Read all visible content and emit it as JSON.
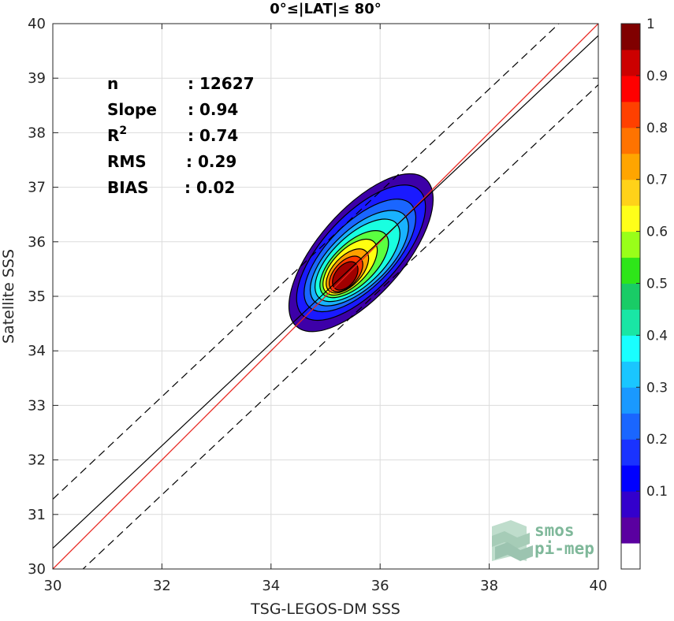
{
  "chart_data": {
    "type": "scatter",
    "title": "0°≤|LAT|≤ 80°",
    "xlabel": "TSG-LEGOS-DM SSS",
    "ylabel": "Satellite SSS",
    "xlim": [
      30,
      40
    ],
    "ylim": [
      30,
      40
    ],
    "xticks": [
      "30",
      "32",
      "34",
      "36",
      "38",
      "40"
    ],
    "yticks": [
      "30",
      "31",
      "32",
      "33",
      "34",
      "35",
      "36",
      "37",
      "38",
      "39",
      "40"
    ],
    "grid": true,
    "stats": [
      {
        "label": "n",
        "value": ": 12627"
      },
      {
        "label": "Slope",
        "value": ": 0.94"
      },
      {
        "label": "R",
        "sup": "2",
        "value": ": 0.74"
      },
      {
        "label": "RMS",
        "value": ": 0.29"
      },
      {
        "label": "BIAS",
        "value": ": 0.02"
      }
    ],
    "lines": {
      "identity": {
        "color": "#e8261f",
        "slope": 1,
        "intercept": 0
      },
      "fit": {
        "color": "#000000",
        "slope": 0.94,
        "intercept": 2.18
      },
      "bounds": {
        "color": "#000000",
        "style": "dashed",
        "slope": 0.94,
        "offsets": [
          0.9,
          -0.9
        ]
      }
    },
    "density": {
      "center": [
        35.4,
        35.35
      ],
      "levels": [
        {
          "value": 0.05,
          "color": "#3d00a8",
          "x1": 34.6,
          "y1": 34.6,
          "x2": 36.7,
          "y2": 37.0
        },
        {
          "value": 0.15,
          "color": "#1a1aff",
          "x1": 34.72,
          "y1": 34.8,
          "x2": 36.58,
          "y2": 36.8
        },
        {
          "value": 0.25,
          "color": "#1a66ff",
          "x1": 34.84,
          "y1": 34.95,
          "x2": 36.42,
          "y2": 36.55
        },
        {
          "value": 0.35,
          "color": "#19b2ff",
          "x1": 34.94,
          "y1": 35.05,
          "x2": 36.3,
          "y2": 36.35
        },
        {
          "value": 0.45,
          "color": "#19ffe0",
          "x1": 35.02,
          "y1": 35.12,
          "x2": 36.15,
          "y2": 36.2
        },
        {
          "value": 0.55,
          "color": "#5bff40",
          "x1": 35.1,
          "y1": 35.18,
          "x2": 35.95,
          "y2": 36.0
        },
        {
          "value": 0.65,
          "color": "#ffff10",
          "x1": 35.15,
          "y1": 35.22,
          "x2": 35.75,
          "y2": 35.85
        },
        {
          "value": 0.75,
          "color": "#ffa000",
          "x1": 35.2,
          "y1": 35.25,
          "x2": 35.6,
          "y2": 35.68
        },
        {
          "value": 0.85,
          "color": "#ff3a00",
          "x1": 35.25,
          "y1": 35.27,
          "x2": 35.5,
          "y2": 35.55
        },
        {
          "value": 0.95,
          "color": "#a00000",
          "x1": 35.3,
          "y1": 35.3,
          "x2": 35.42,
          "y2": 35.45
        }
      ]
    },
    "colorbar": {
      "ticks": [
        "0.1",
        "0.2",
        "0.3",
        "0.4",
        "0.5",
        "0.6",
        "0.7",
        "0.8",
        "0.9",
        "1"
      ],
      "colors": [
        "#ffffff",
        "#5a00a0",
        "#3300cc",
        "#0000ff",
        "#1a33ff",
        "#1a66ff",
        "#1a99ff",
        "#1ac6ff",
        "#19ffff",
        "#19e6a5",
        "#19cc66",
        "#2ee619",
        "#99ff19",
        "#ffff19",
        "#ffd219",
        "#ffa500",
        "#ff7300",
        "#ff4000",
        "#ff0000",
        "#cc0000",
        "#800000"
      ]
    },
    "watermark": [
      "smos",
      "pi-mep"
    ]
  }
}
